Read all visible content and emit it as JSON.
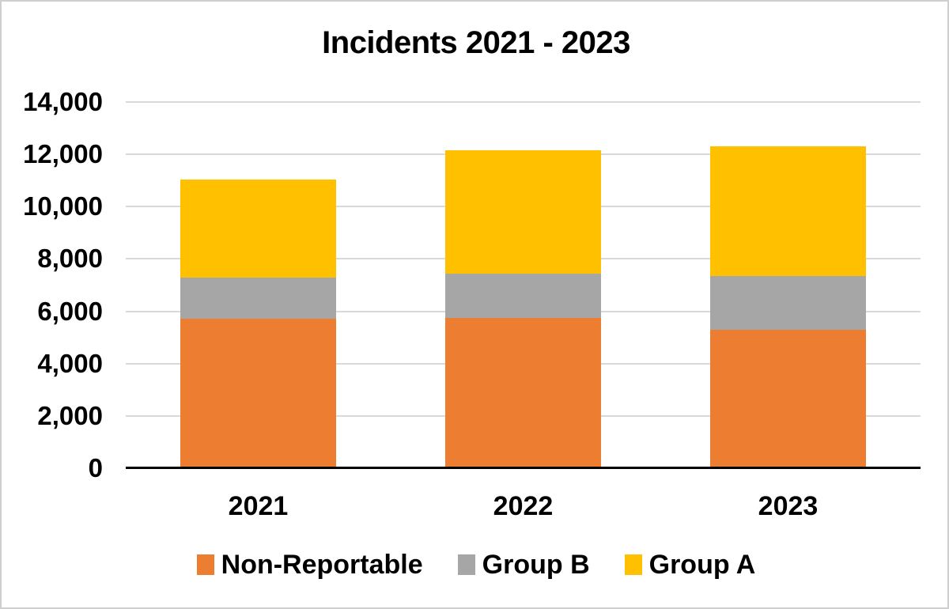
{
  "chart_data": {
    "type": "bar",
    "stacked": true,
    "title": "Incidents 2021 - 2023",
    "categories": [
      "2021",
      "2022",
      "2023"
    ],
    "series": [
      {
        "name": "Non-Reportable",
        "color": "#ED7D31",
        "values": [
          5700,
          5750,
          5300
        ]
      },
      {
        "name": "Group B",
        "color": "#A6A6A6",
        "values": [
          1600,
          1700,
          2050
        ]
      },
      {
        "name": "Group A",
        "color": "#FFC000",
        "values": [
          3750,
          4700,
          4950
        ]
      }
    ],
    "xlabel": "",
    "ylabel": "",
    "ylim": [
      0,
      14000
    ],
    "ytick_step": 2000,
    "ytick_labels": [
      "0",
      "2,000",
      "4,000",
      "6,000",
      "8,000",
      "10,000",
      "12,000",
      "14,000"
    ],
    "grid": true,
    "gridline_color": "#D9D9D9",
    "axis_line_color": "#000000",
    "text_color": "#000000",
    "background_color": "#FFFFFF",
    "frame_border_color": "#CFCFCF",
    "legend_position": "bottom"
  }
}
